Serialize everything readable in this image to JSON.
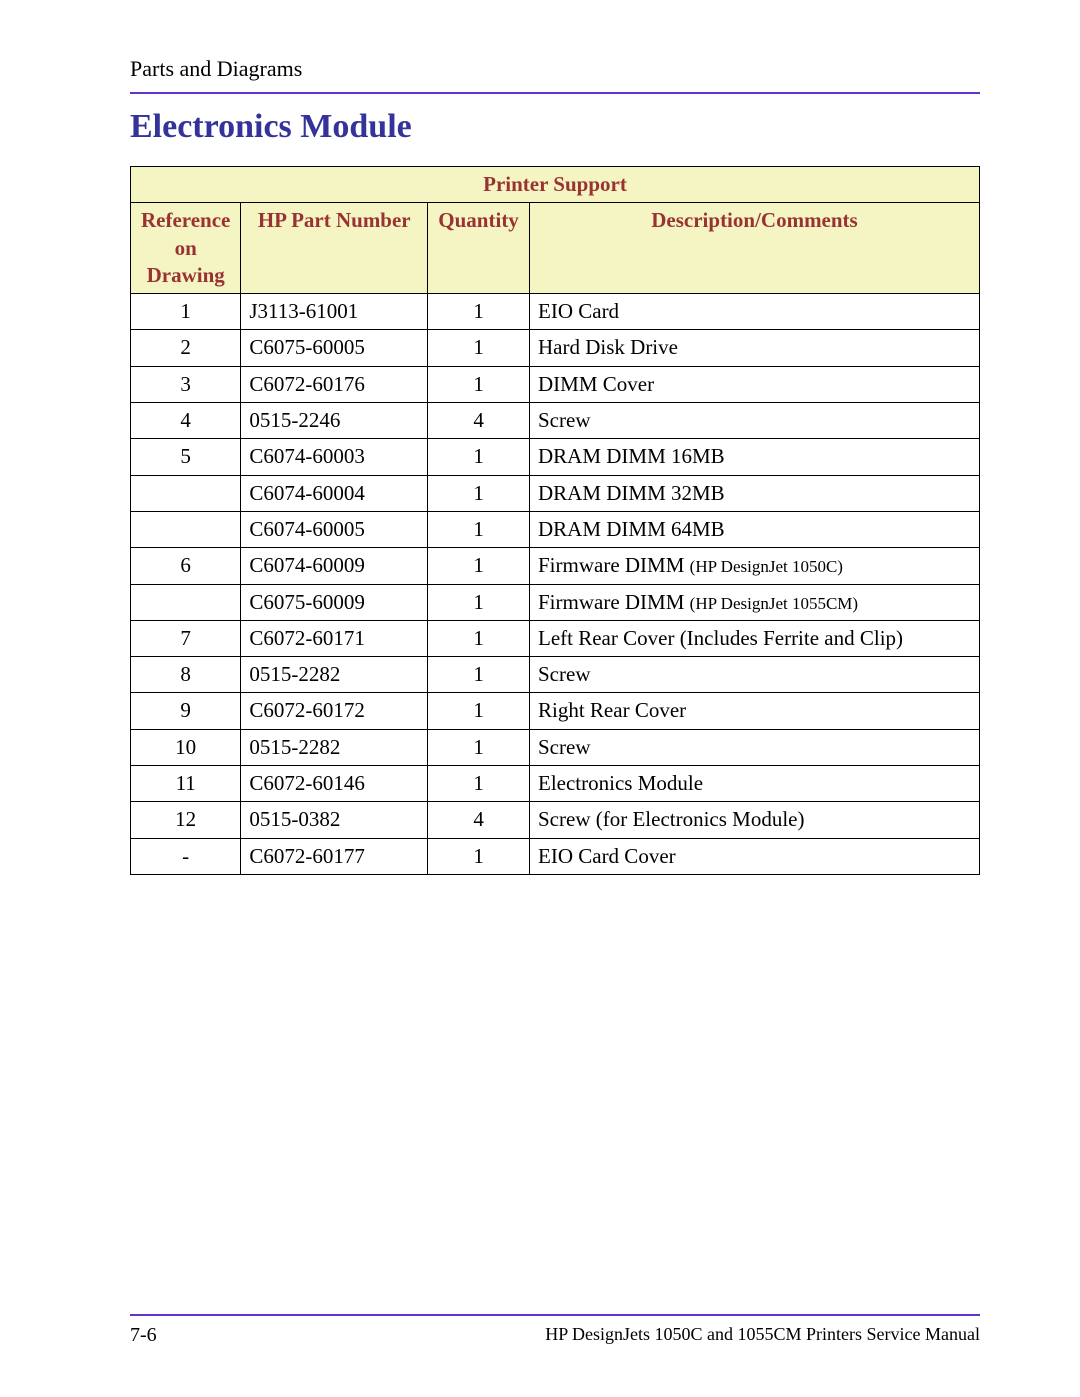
{
  "colors": {
    "rule": "#6633cc",
    "title": "#333399",
    "header_text": "#993333",
    "header_bg": "#f5f5c4",
    "border": "#000000",
    "body_text": "#000000",
    "background": "#ffffff"
  },
  "typography": {
    "section_label_size": 22,
    "title_size": 34,
    "table_cell_size": 21,
    "small_note_size": 17,
    "footer_left_size": 20,
    "footer_right_size": 18
  },
  "header": {
    "section_label": "Parts and Diagrams",
    "title": "Electronics Module"
  },
  "table": {
    "type": "table",
    "title": "Printer Support",
    "columns": [
      "Reference on Drawing",
      "HP Part Number",
      "Quantity",
      "Description/Comments"
    ],
    "col_widths_pct": [
      13,
      22,
      12,
      53
    ],
    "alignments": [
      "center",
      "left",
      "center",
      "left"
    ],
    "rows": [
      {
        "ref": "1",
        "part": "J3113-61001",
        "qty": "1",
        "desc": "EIO Card"
      },
      {
        "ref": "2",
        "part": "C6075-60005",
        "qty": "1",
        "desc": "Hard Disk Drive"
      },
      {
        "ref": "3",
        "part": "C6072-60176",
        "qty": "1",
        "desc": "DIMM Cover"
      },
      {
        "ref": "4",
        "part": "0515-2246",
        "qty": "4",
        "desc": "Screw"
      },
      {
        "ref": "5",
        "part": "C6074-60003",
        "qty": "1",
        "desc": "DRAM DIMM 16MB"
      },
      {
        "ref": "",
        "part": "C6074-60004",
        "qty": "1",
        "desc": "DRAM DIMM 32MB"
      },
      {
        "ref": "",
        "part": "C6074-60005",
        "qty": "1",
        "desc": "DRAM DIMM 64MB"
      },
      {
        "ref": "6",
        "part": "C6074-60009",
        "qty": "1",
        "desc": "Firmware DIMM ",
        "desc_note": "(HP DesignJet 1050C)"
      },
      {
        "ref": "",
        "part": "C6075-60009",
        "qty": "1",
        "desc": "Firmware DIMM ",
        "desc_note": "(HP DesignJet 1055CM)"
      },
      {
        "ref": "7",
        "part": "C6072-60171",
        "qty": "1",
        "desc": "Left Rear Cover (Includes Ferrite and Clip)"
      },
      {
        "ref": "8",
        "part": "0515-2282",
        "qty": "1",
        "desc": "Screw"
      },
      {
        "ref": "9",
        "part": "C6072-60172",
        "qty": "1",
        "desc": "Right Rear Cover"
      },
      {
        "ref": "10",
        "part": "0515-2282",
        "qty": "1",
        "desc": "Screw"
      },
      {
        "ref": "11",
        "part": "C6072-60146",
        "qty": "1",
        "desc": "Electronics Module"
      },
      {
        "ref": "12",
        "part": "0515-0382",
        "qty": "4",
        "desc": "Screw (for Electronics Module)"
      },
      {
        "ref": "-",
        "part": "C6072-60177",
        "qty": "1",
        "desc": "EIO Card Cover"
      }
    ]
  },
  "footer": {
    "page_number": "7-6",
    "manual_title": "HP DesignJets 1050C and 1055CM Printers Service Manual"
  }
}
